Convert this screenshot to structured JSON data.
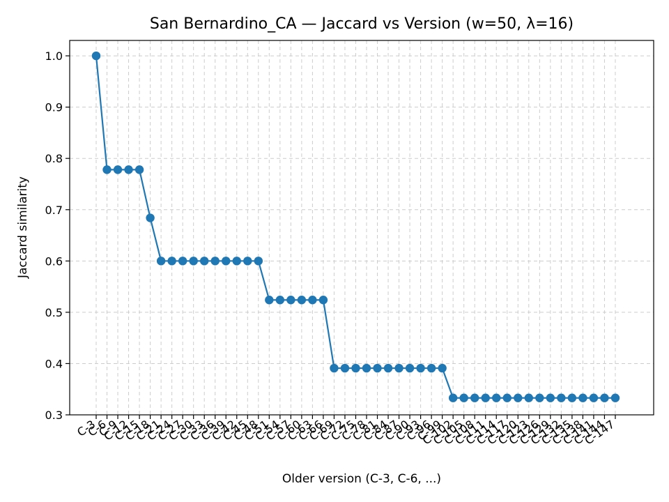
{
  "chart_data": {
    "type": "line",
    "title": "San Bernardino_CA — Jaccard vs Version (w=50, λ=16)",
    "xlabel": "Older version (C-3, C-6, ...)",
    "ylabel": "Jaccard similarity",
    "ylim": [
      0.3,
      1.03
    ],
    "yticks": [
      "0.3",
      "0.4",
      "0.5",
      "0.6",
      "0.7",
      "0.8",
      "0.9",
      "1.0"
    ],
    "grid": true,
    "legend": "none",
    "color": "#1f77b4",
    "categories": [
      "C-3",
      "C-6",
      "C-9",
      "C-12",
      "C-15",
      "C-18",
      "C-21",
      "C-24",
      "C-27",
      "C-30",
      "C-33",
      "C-36",
      "C-39",
      "C-42",
      "C-45",
      "C-48",
      "C-51",
      "C-54",
      "C-57",
      "C-60",
      "C-63",
      "C-66",
      "C-69",
      "C-72",
      "C-75",
      "C-78",
      "C-81",
      "C-84",
      "C-87",
      "C-90",
      "C-93",
      "C-96",
      "C-99",
      "C-102",
      "C-105",
      "C-108",
      "C-111",
      "C-114",
      "C-117",
      "C-120",
      "C-123",
      "C-126",
      "C-129",
      "C-132",
      "C-135",
      "C-138",
      "C-141",
      "C-144",
      "C-147"
    ],
    "values": [
      1.0,
      0.778,
      0.778,
      0.778,
      0.778,
      0.684,
      0.6,
      0.6,
      0.6,
      0.6,
      0.6,
      0.6,
      0.6,
      0.6,
      0.6,
      0.6,
      0.524,
      0.524,
      0.524,
      0.524,
      0.524,
      0.524,
      0.391,
      0.391,
      0.391,
      0.391,
      0.391,
      0.391,
      0.391,
      0.391,
      0.391,
      0.391,
      0.391,
      0.333,
      0.333,
      0.333,
      0.333,
      0.333,
      0.333,
      0.333,
      0.333,
      0.333,
      0.333,
      0.333,
      0.333,
      0.333,
      0.333,
      0.333,
      0.333
    ]
  }
}
